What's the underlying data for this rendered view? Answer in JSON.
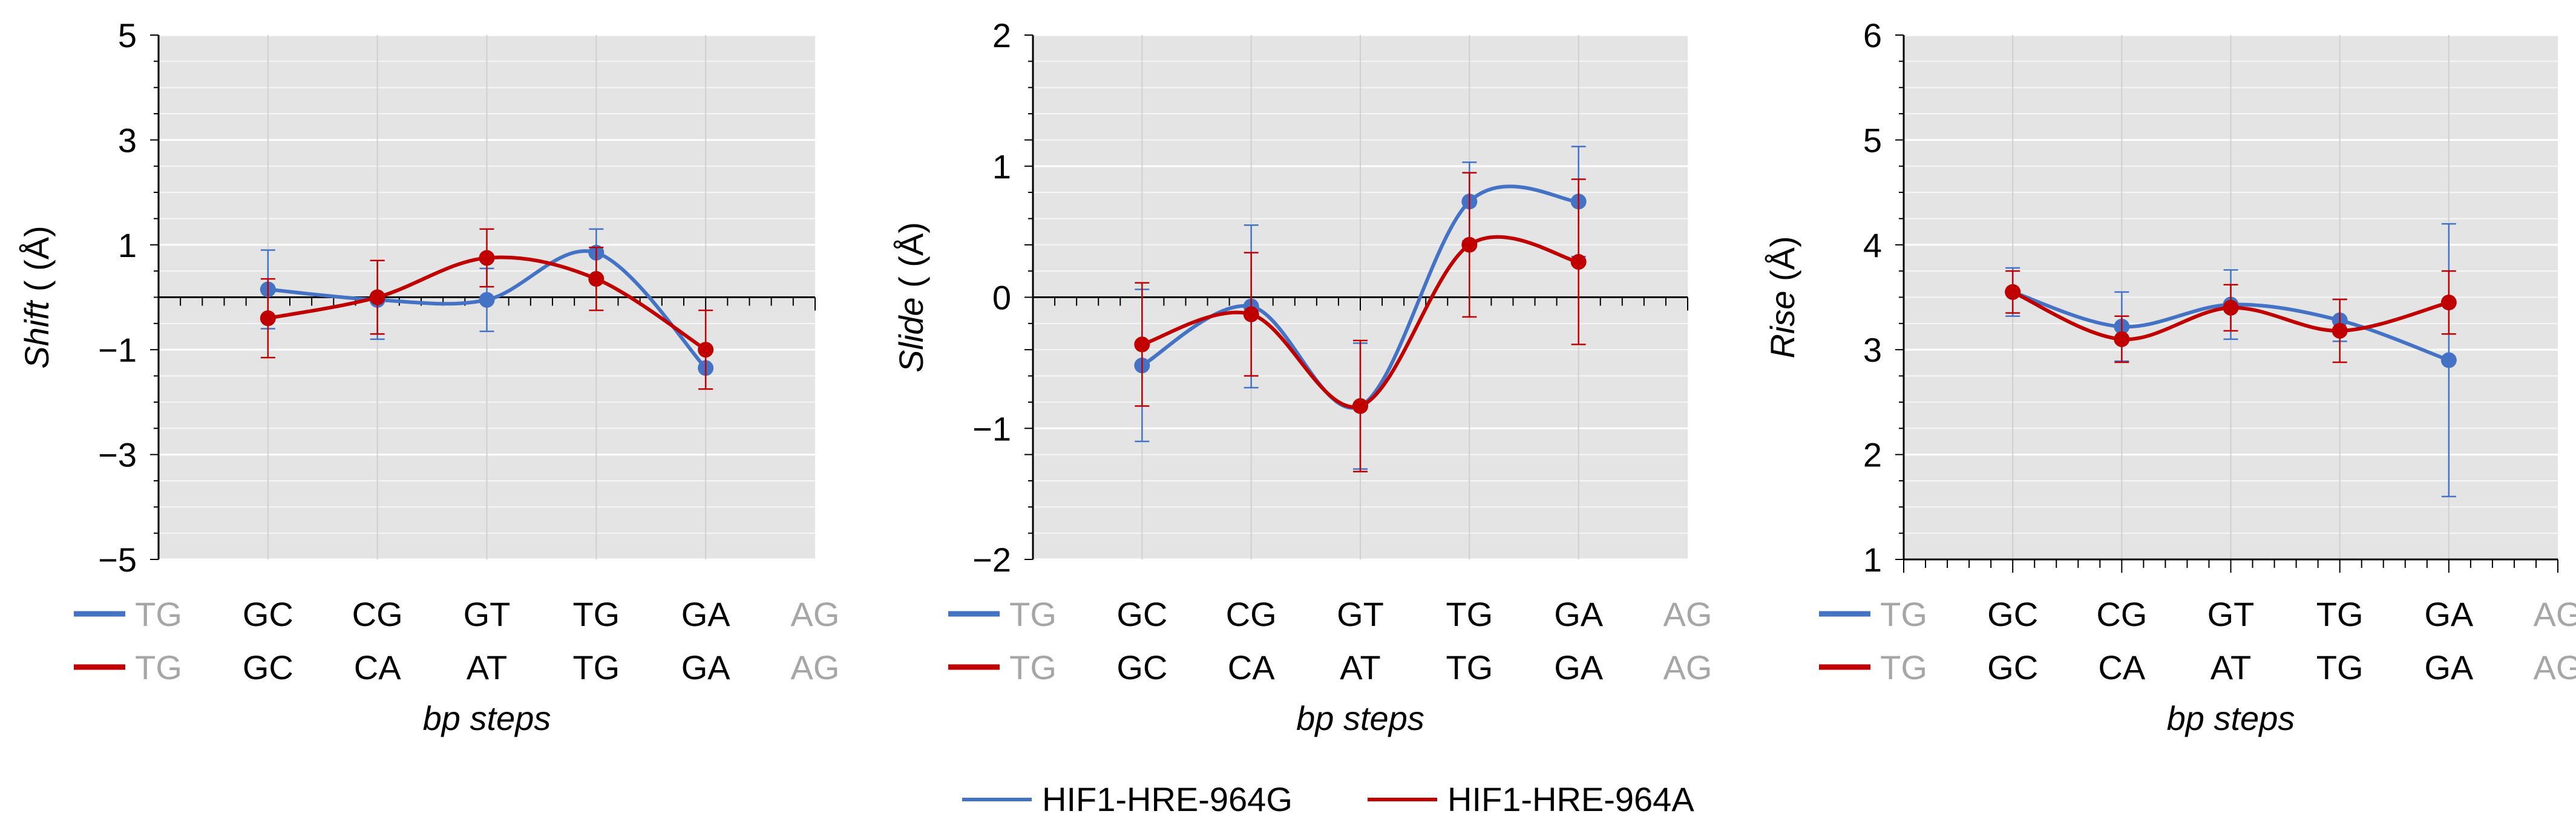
{
  "colors": {
    "HIF1-HRE-964G": "#4472C4",
    "HIF1-HRE-964A": "#C00000",
    "plot_bg": "#E4E4E4",
    "grid": "#F6F6F6",
    "faded_label": "#A6A6A6"
  },
  "legend": {
    "position": "bottom-center",
    "items": [
      {
        "name": "HIF1-HRE-964G",
        "color": "#4472C4"
      },
      {
        "name": "HIF1-HRE-964A",
        "color": "#C00000"
      }
    ]
  },
  "chart_data": [
    {
      "type": "line",
      "smooth": true,
      "ylabel_italic": "Shift",
      "ylabel_unit": " ( (Å)",
      "xlabel": "bp steps",
      "ylim": [
        -5,
        5
      ],
      "yticks": [
        5,
        3,
        1,
        -1,
        -3,
        -5
      ],
      "ytick_labels": [
        "5",
        "3",
        "1",
        "−1",
        "−3",
        "−5"
      ],
      "x_axis_crosses_at": 0,
      "grid": true,
      "categories": {
        "HIF1-HRE-964G": [
          "TG",
          "GC",
          "CG",
          "GT",
          "TG",
          "GA",
          "AG"
        ],
        "HIF1-HRE-964A": [
          "TG",
          "GC",
          "CA",
          "AT",
          "TG",
          "GA",
          "AG"
        ]
      },
      "faded_categories": [
        0,
        6
      ],
      "series": [
        {
          "name": "HIF1-HRE-964G",
          "values": [
            null,
            0.15,
            -0.05,
            -0.05,
            0.85,
            -1.35,
            null
          ],
          "errors": [
            null,
            0.75,
            0.75,
            0.6,
            0.45,
            0.4,
            null
          ]
        },
        {
          "name": "HIF1-HRE-964A",
          "values": [
            null,
            -0.4,
            0.0,
            0.75,
            0.35,
            -1.0,
            null
          ],
          "errors": [
            null,
            0.75,
            0.7,
            0.55,
            0.6,
            0.75,
            null
          ]
        }
      ]
    },
    {
      "type": "line",
      "smooth": true,
      "ylabel_italic": "Slide",
      "ylabel_unit": " ( (Å)",
      "xlabel": "bp steps",
      "ylim": [
        -2,
        2
      ],
      "yticks": [
        2,
        1,
        0,
        -1,
        -2
      ],
      "ytick_labels": [
        "2",
        "1",
        "0",
        "−1",
        "−2"
      ],
      "x_axis_crosses_at": 0,
      "grid": true,
      "categories": {
        "HIF1-HRE-964G": [
          "TG",
          "GC",
          "CG",
          "GT",
          "TG",
          "GA",
          "AG"
        ],
        "HIF1-HRE-964A": [
          "TG",
          "GC",
          "CA",
          "AT",
          "TG",
          "GA",
          "AG"
        ]
      },
      "faded_categories": [
        0,
        6
      ],
      "series": [
        {
          "name": "HIF1-HRE-964G",
          "values": [
            null,
            -0.52,
            -0.07,
            -0.83,
            0.73,
            0.73,
            null
          ],
          "errors": [
            null,
            0.58,
            0.62,
            0.48,
            0.3,
            0.42,
            null
          ]
        },
        {
          "name": "HIF1-HRE-964A",
          "values": [
            null,
            -0.36,
            -0.13,
            -0.83,
            0.4,
            0.27,
            null
          ],
          "errors": [
            null,
            0.47,
            0.47,
            0.5,
            0.55,
            0.63,
            null
          ]
        }
      ]
    },
    {
      "type": "line",
      "smooth": true,
      "ylabel_italic": "Rise",
      "ylabel_unit": " (Å)",
      "xlabel": "bp steps",
      "ylim": [
        1,
        6
      ],
      "yticks": [
        6,
        5,
        4,
        3,
        2,
        1
      ],
      "ytick_labels": [
        "6",
        "5",
        "4",
        "3",
        "2",
        "1"
      ],
      "x_axis_crosses_at": 1,
      "grid": true,
      "categories": {
        "HIF1-HRE-964G": [
          "TG",
          "GC",
          "CG",
          "GT",
          "TG",
          "GA",
          "AG"
        ],
        "HIF1-HRE-964A": [
          "TG",
          "GC",
          "CA",
          "AT",
          "TG",
          "GA",
          "AG"
        ]
      },
      "faded_categories": [
        0,
        6
      ],
      "series": [
        {
          "name": "HIF1-HRE-964G",
          "values": [
            null,
            3.55,
            3.22,
            3.43,
            3.28,
            2.9,
            null
          ],
          "errors": [
            null,
            0.23,
            0.33,
            0.33,
            0.2,
            1.3,
            null
          ]
        },
        {
          "name": "HIF1-HRE-964A",
          "values": [
            null,
            3.55,
            3.1,
            3.4,
            3.18,
            3.45,
            null
          ],
          "errors": [
            null,
            0.2,
            0.22,
            0.22,
            0.3,
            0.3,
            null
          ]
        }
      ]
    }
  ]
}
